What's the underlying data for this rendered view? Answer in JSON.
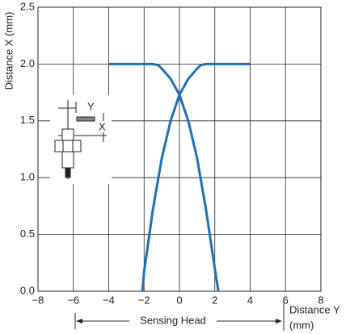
{
  "chart_data": {
    "type": "line",
    "y_label": "Distance X (mm)",
    "x_label": [
      "Distance Y",
      "(mm)"
    ],
    "annotations": [
      "Sensing Head",
      "Y",
      "X"
    ],
    "xlim": [
      -8,
      8
    ],
    "xticks": [
      {
        "value": -8,
        "label": "−8"
      },
      {
        "value": -6,
        "label": "−6"
      },
      {
        "value": -4,
        "label": "−4"
      },
      {
        "value": -2,
        "label": "−2"
      },
      0,
      2,
      4,
      6,
      8
    ],
    "ylim": [
      0,
      2.5
    ],
    "yticks": [
      {
        "value": 0,
        "label": "0.0"
      },
      {
        "value": 0.5,
        "label": "0.5"
      },
      {
        "value": 1,
        "label": "1.0"
      },
      {
        "value": 1.5,
        "label": "1.5"
      },
      {
        "value": 2,
        "label": "2.0"
      },
      {
        "value": 2.5,
        "label": "2.5"
      }
    ],
    "grid": true,
    "series": [
      {
        "color": "#1f6fb2",
        "x": [
          -4,
          -3,
          -2,
          -1.5,
          -1.2,
          -1,
          -0.5,
          0,
          0.5,
          1,
          1.5,
          2,
          2.2
        ],
        "values": [
          2.0,
          2.0,
          2.0,
          2.0,
          1.99,
          1.96,
          1.87,
          1.73,
          1.5,
          1.17,
          0.72,
          0.2,
          0
        ]
      },
      {
        "color": "#1f6fb2",
        "x": [
          -2.1,
          -2,
          -1.5,
          -1,
          -0.5,
          0,
          0.5,
          1,
          1.2,
          1.5,
          2,
          3,
          4
        ],
        "values": [
          0,
          0.17,
          0.72,
          1.17,
          1.5,
          1.73,
          1.87,
          1.96,
          1.99,
          2.0,
          2.0,
          2.0,
          2.0
        ]
      }
    ]
  }
}
